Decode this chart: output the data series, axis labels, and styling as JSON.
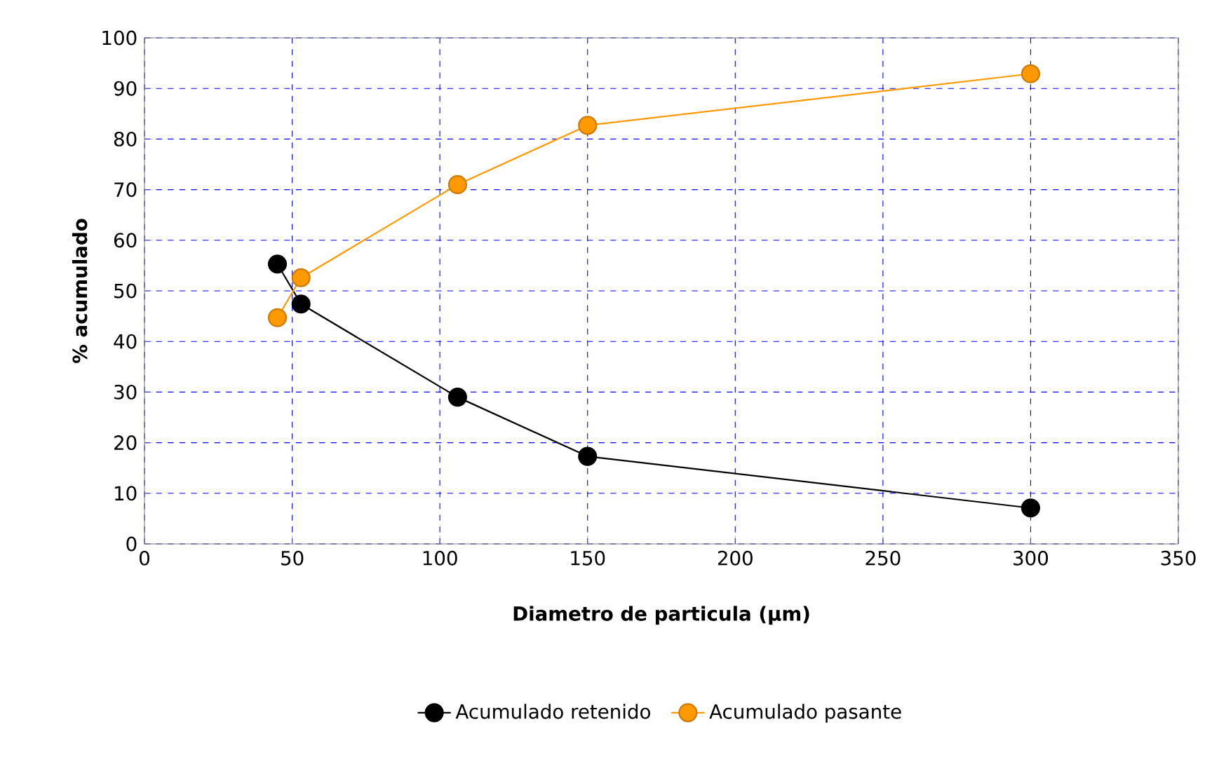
{
  "chart_data": {
    "type": "line",
    "xlabel": "Diametro de particula (µm)",
    "ylabel": "% acumulado",
    "xlim": [
      0,
      350
    ],
    "xticks": [
      0,
      50,
      100,
      150,
      200,
      250,
      300,
      350
    ],
    "ylim": [
      0,
      100
    ],
    "yticks": [
      0,
      10,
      20,
      30,
      40,
      50,
      60,
      70,
      80,
      90,
      100
    ],
    "grid": true,
    "legend": "bottom",
    "marker": "circle",
    "line_style": "solid",
    "series": [
      {
        "name": "Acumulado retenido",
        "color": "#000000",
        "x": [
          45,
          53,
          106,
          150,
          300
        ],
        "values": [
          55.3,
          47.4,
          29.0,
          17.3,
          7.1
        ]
      },
      {
        "name": "Acumulado pasante",
        "color": "#ff9900",
        "x": [
          45,
          53,
          106,
          150,
          300
        ],
        "values": [
          44.7,
          52.6,
          71.0,
          82.7,
          92.9
        ]
      }
    ]
  }
}
